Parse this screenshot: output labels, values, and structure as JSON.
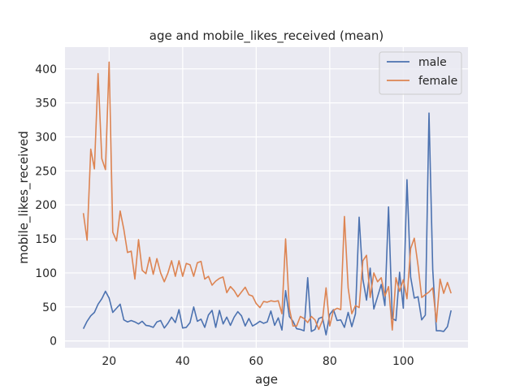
{
  "chart_data": {
    "type": "line",
    "title": "age and mobile_likes_received (mean)",
    "xlabel": "age",
    "ylabel": "mobile_likes_received",
    "xlim": [
      8.0,
      117.6
    ],
    "ylim": [
      -10,
      432
    ],
    "xticks": [
      20,
      40,
      60,
      80,
      100
    ],
    "yticks": [
      0,
      50,
      100,
      150,
      200,
      250,
      300,
      350,
      400
    ],
    "grid": true,
    "legend_position": "top-right",
    "series": [
      {
        "name": "male",
        "color": "#4c72b0",
        "points": [
          [
            13,
            18
          ],
          [
            14,
            29
          ],
          [
            15,
            37
          ],
          [
            16,
            42
          ],
          [
            17,
            54
          ],
          [
            18,
            62
          ],
          [
            19,
            73
          ],
          [
            20,
            63
          ],
          [
            21,
            42
          ],
          [
            22,
            48
          ],
          [
            23,
            54
          ],
          [
            24,
            31
          ],
          [
            25,
            28
          ],
          [
            26,
            30
          ],
          [
            27,
            28
          ],
          [
            28,
            25
          ],
          [
            29,
            29
          ],
          [
            30,
            23
          ],
          [
            31,
            22
          ],
          [
            32,
            20
          ],
          [
            33,
            28
          ],
          [
            34,
            30
          ],
          [
            35,
            19
          ],
          [
            36,
            26
          ],
          [
            37,
            35
          ],
          [
            38,
            27
          ],
          [
            39,
            46
          ],
          [
            40,
            19
          ],
          [
            41,
            20
          ],
          [
            42,
            27
          ],
          [
            43,
            50
          ],
          [
            44,
            29
          ],
          [
            45,
            32
          ],
          [
            46,
            20
          ],
          [
            47,
            38
          ],
          [
            48,
            45
          ],
          [
            49,
            20
          ],
          [
            50,
            45
          ],
          [
            51,
            25
          ],
          [
            52,
            35
          ],
          [
            53,
            23
          ],
          [
            54,
            35
          ],
          [
            55,
            43
          ],
          [
            56,
            37
          ],
          [
            57,
            22
          ],
          [
            58,
            33
          ],
          [
            59,
            22
          ],
          [
            60,
            25
          ],
          [
            61,
            29
          ],
          [
            62,
            26
          ],
          [
            63,
            28
          ],
          [
            64,
            44
          ],
          [
            65,
            23
          ],
          [
            66,
            34
          ],
          [
            67,
            16
          ],
          [
            68,
            74
          ],
          [
            69,
            36
          ],
          [
            70,
            29
          ],
          [
            71,
            18
          ],
          [
            72,
            17
          ],
          [
            73,
            15
          ],
          [
            74,
            93
          ],
          [
            75,
            14
          ],
          [
            76,
            17
          ],
          [
            77,
            33
          ],
          [
            78,
            35
          ],
          [
            79,
            9
          ],
          [
            80,
            39
          ],
          [
            81,
            46
          ],
          [
            82,
            30
          ],
          [
            83,
            31
          ],
          [
            84,
            20
          ],
          [
            85,
            42
          ],
          [
            86,
            21
          ],
          [
            87,
            40
          ],
          [
            88,
            182
          ],
          [
            89,
            91
          ],
          [
            90,
            60
          ],
          [
            91,
            107
          ],
          [
            92,
            47
          ],
          [
            93,
            65
          ],
          [
            94,
            83
          ],
          [
            95,
            52
          ],
          [
            96,
            197
          ],
          [
            97,
            33
          ],
          [
            98,
            30
          ],
          [
            99,
            101
          ],
          [
            100,
            48
          ],
          [
            101,
            237
          ],
          [
            102,
            94
          ],
          [
            103,
            63
          ],
          [
            104,
            65
          ],
          [
            105,
            31
          ],
          [
            106,
            38
          ],
          [
            107,
            335
          ],
          [
            108,
            105
          ],
          [
            109,
            15
          ],
          [
            110,
            15
          ],
          [
            111,
            14
          ],
          [
            112,
            21
          ],
          [
            113,
            45
          ]
        ]
      },
      {
        "name": "female",
        "color": "#dd8452",
        "points": [
          [
            13,
            188
          ],
          [
            14,
            148
          ],
          [
            15,
            282
          ],
          [
            16,
            253
          ],
          [
            17,
            393
          ],
          [
            18,
            268
          ],
          [
            19,
            252
          ],
          [
            20,
            410
          ],
          [
            21,
            160
          ],
          [
            22,
            147
          ],
          [
            23,
            191
          ],
          [
            24,
            164
          ],
          [
            25,
            130
          ],
          [
            26,
            132
          ],
          [
            27,
            91
          ],
          [
            28,
            149
          ],
          [
            29,
            104
          ],
          [
            30,
            99
          ],
          [
            31,
            123
          ],
          [
            32,
            98
          ],
          [
            33,
            121
          ],
          [
            34,
            100
          ],
          [
            35,
            87
          ],
          [
            36,
            100
          ],
          [
            37,
            118
          ],
          [
            38,
            95
          ],
          [
            39,
            118
          ],
          [
            40,
            95
          ],
          [
            41,
            114
          ],
          [
            42,
            112
          ],
          [
            43,
            95
          ],
          [
            44,
            115
          ],
          [
            45,
            117
          ],
          [
            46,
            91
          ],
          [
            47,
            95
          ],
          [
            48,
            82
          ],
          [
            49,
            88
          ],
          [
            50,
            92
          ],
          [
            51,
            94
          ],
          [
            52,
            71
          ],
          [
            53,
            80
          ],
          [
            54,
            74
          ],
          [
            55,
            65
          ],
          [
            56,
            72
          ],
          [
            57,
            79
          ],
          [
            58,
            68
          ],
          [
            59,
            66
          ],
          [
            60,
            55
          ],
          [
            61,
            49
          ],
          [
            62,
            58
          ],
          [
            63,
            57
          ],
          [
            64,
            59
          ],
          [
            65,
            58
          ],
          [
            66,
            59
          ],
          [
            67,
            40
          ],
          [
            68,
            150
          ],
          [
            69,
            48
          ],
          [
            70,
            22
          ],
          [
            71,
            22
          ],
          [
            72,
            36
          ],
          [
            73,
            33
          ],
          [
            74,
            27
          ],
          [
            75,
            36
          ],
          [
            76,
            31
          ],
          [
            77,
            17
          ],
          [
            78,
            30
          ],
          [
            79,
            78
          ],
          [
            80,
            22
          ],
          [
            81,
            45
          ],
          [
            82,
            48
          ],
          [
            83,
            46
          ],
          [
            84,
            183
          ],
          [
            85,
            78
          ],
          [
            86,
            40
          ],
          [
            87,
            52
          ],
          [
            88,
            49
          ],
          [
            89,
            118
          ],
          [
            90,
            126
          ],
          [
            91,
            64
          ],
          [
            92,
            100
          ],
          [
            93,
            87
          ],
          [
            94,
            93
          ],
          [
            95,
            66
          ],
          [
            96,
            80
          ],
          [
            97,
            16
          ],
          [
            98,
            93
          ],
          [
            99,
            73
          ],
          [
            100,
            90
          ],
          [
            101,
            62
          ],
          [
            102,
            136
          ],
          [
            103,
            151
          ],
          [
            104,
            111
          ],
          [
            105,
            64
          ],
          [
            106,
            68
          ],
          [
            107,
            72
          ],
          [
            108,
            78
          ],
          [
            109,
            28
          ],
          [
            110,
            91
          ],
          [
            111,
            70
          ],
          [
            112,
            86
          ],
          [
            113,
            70
          ]
        ]
      }
    ]
  }
}
